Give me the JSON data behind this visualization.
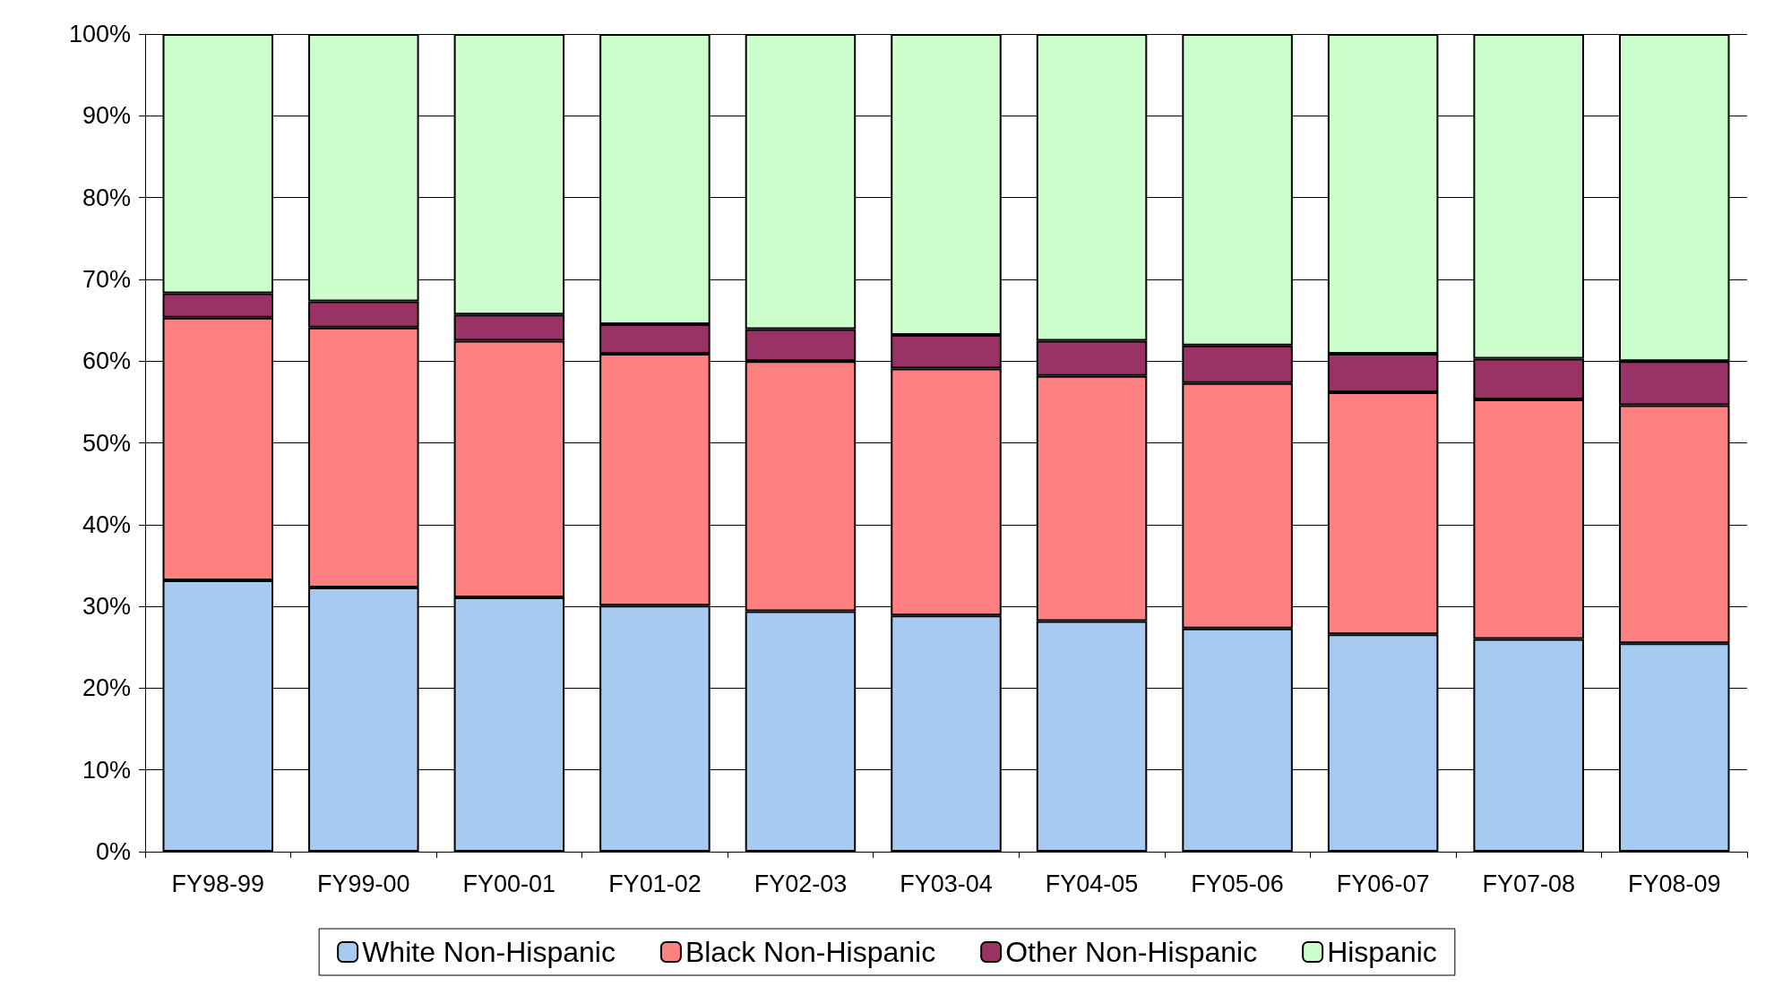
{
  "chart_data": {
    "type": "bar",
    "stacked": true,
    "categories": [
      "FY98-99",
      "FY99-00",
      "FY00-01",
      "FY01-02",
      "FY02-03",
      "FY03-04",
      "FY04-05",
      "FY05-06",
      "FY06-07",
      "FY07-08",
      "FY08-09"
    ],
    "series": [
      {
        "name": "White Non-Hispanic",
        "color": "#a6caf0",
        "values": [
          33.2,
          32.3,
          31.1,
          30.1,
          29.4,
          28.9,
          28.2,
          27.3,
          26.6,
          26.0,
          25.5
        ]
      },
      {
        "name": "Black Non-Hispanic",
        "color": "#ff8080",
        "values": [
          32.1,
          31.8,
          31.4,
          30.8,
          30.6,
          30.2,
          30.0,
          30.0,
          29.6,
          29.3,
          29.1
        ]
      },
      {
        "name": "Other Non-Hispanic",
        "color": "#993366",
        "values": [
          3.0,
          3.2,
          3.2,
          3.6,
          3.9,
          4.1,
          4.3,
          4.6,
          4.7,
          5.0,
          5.4
        ]
      },
      {
        "name": "Hispanic",
        "color": "#ccffcc",
        "values": [
          31.7,
          32.7,
          34.3,
          35.5,
          36.1,
          36.8,
          37.5,
          38.1,
          39.1,
          39.7,
          40.0
        ]
      }
    ],
    "ylim": [
      0,
      100
    ],
    "yticks": [
      {
        "value": 0,
        "label": "0%"
      },
      {
        "value": 10,
        "label": "10%"
      },
      {
        "value": 20,
        "label": "20%"
      },
      {
        "value": 30,
        "label": "30%"
      },
      {
        "value": 40,
        "label": "40%"
      },
      {
        "value": 50,
        "label": "50%"
      },
      {
        "value": 60,
        "label": "60%"
      },
      {
        "value": 70,
        "label": "70%"
      },
      {
        "value": 80,
        "label": "80%"
      },
      {
        "value": 90,
        "label": "90%"
      },
      {
        "value": 100,
        "label": "100%"
      }
    ],
    "grid": "y",
    "legend": "bottom"
  }
}
